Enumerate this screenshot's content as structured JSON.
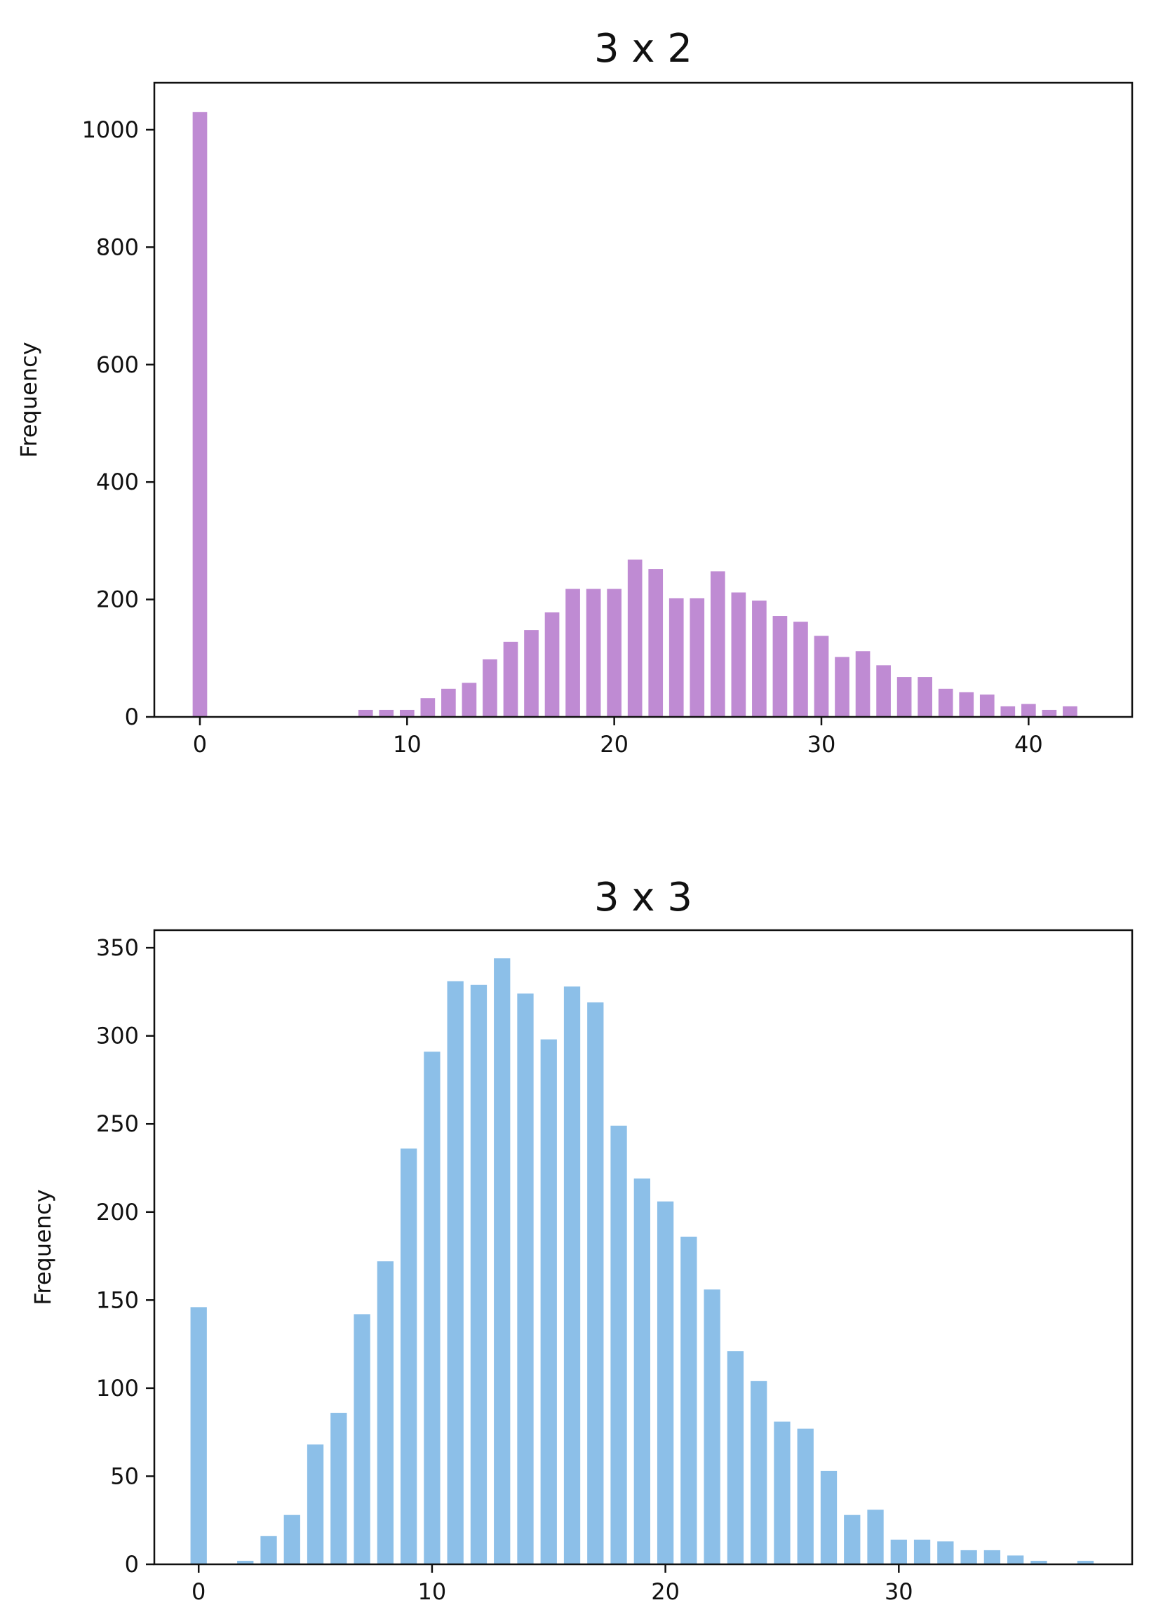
{
  "chart_data": [
    {
      "type": "bar",
      "title": "3 x 2",
      "xlabel": "",
      "ylabel": "Frequency",
      "color": "#bf8bd3",
      "xlim": [
        -2.2,
        45
      ],
      "ylim": [
        0,
        1080
      ],
      "xticks": [
        0,
        10,
        20,
        30,
        40
      ],
      "yticks": [
        0,
        200,
        400,
        600,
        800,
        1000
      ],
      "grid": false,
      "legend": "none",
      "x": [
        0,
        8,
        9,
        10,
        11,
        12,
        13,
        14,
        15,
        16,
        17,
        18,
        19,
        20,
        21,
        22,
        23,
        24,
        25,
        26,
        27,
        28,
        29,
        30,
        31,
        32,
        33,
        34,
        35,
        36,
        37,
        38,
        39,
        40,
        41,
        42
      ],
      "values": [
        1030,
        12,
        12,
        12,
        32,
        48,
        58,
        98,
        128,
        148,
        178,
        218,
        218,
        218,
        268,
        252,
        202,
        202,
        248,
        212,
        198,
        172,
        162,
        138,
        102,
        112,
        88,
        68,
        68,
        48,
        42,
        38,
        18,
        22,
        12,
        18
      ]
    },
    {
      "type": "bar",
      "title": "3 x 3",
      "xlabel": "",
      "ylabel": "Frequency",
      "color": "#8cbfe8",
      "xlim": [
        -1.9,
        40
      ],
      "ylim": [
        0,
        360
      ],
      "xticks": [
        0,
        10,
        20,
        30
      ],
      "yticks": [
        0,
        50,
        100,
        150,
        200,
        250,
        300,
        350
      ],
      "grid": false,
      "legend": "none",
      "x": [
        0,
        2,
        3,
        4,
        5,
        6,
        7,
        8,
        9,
        10,
        11,
        12,
        13,
        14,
        15,
        16,
        17,
        18,
        19,
        20,
        21,
        22,
        23,
        24,
        25,
        26,
        27,
        28,
        29,
        30,
        31,
        32,
        33,
        34,
        35,
        36,
        38
      ],
      "values": [
        146,
        2,
        16,
        28,
        68,
        86,
        142,
        172,
        236,
        291,
        331,
        329,
        344,
        324,
        298,
        328,
        319,
        249,
        219,
        206,
        186,
        156,
        121,
        104,
        81,
        77,
        53,
        28,
        31,
        14,
        14,
        13,
        8,
        8,
        5,
        2,
        2
      ]
    }
  ]
}
